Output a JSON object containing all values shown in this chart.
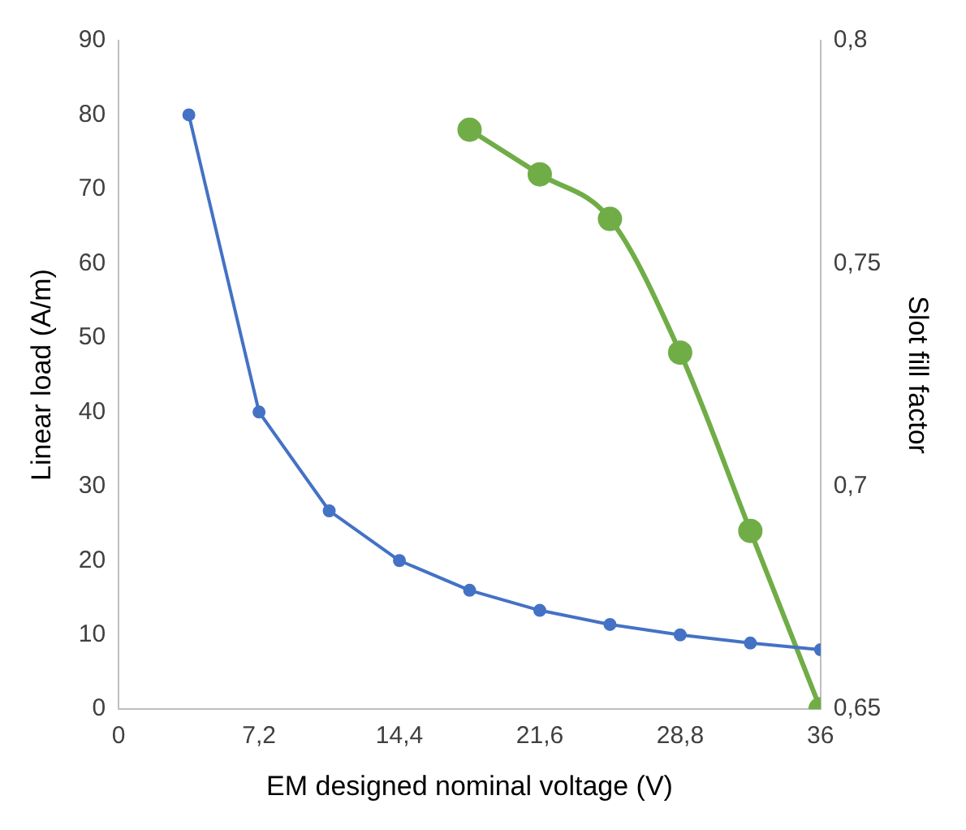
{
  "chart_data": {
    "type": "line",
    "xlabel": "EM designed nominal voltage (V)",
    "ylabel": "Linear load (A/m)",
    "y2label": "Slot fill factor",
    "xlim": [
      0,
      36
    ],
    "xticks": [
      0,
      {
        "value": 7.2,
        "label": "7,2"
      },
      {
        "value": 14.4,
        "label": "14,4"
      },
      {
        "value": 21.6,
        "label": "21,6"
      },
      {
        "value": 28.8,
        "label": "28,8"
      },
      36
    ],
    "ylim": [
      0,
      90
    ],
    "yticks": [
      0,
      10,
      20,
      30,
      40,
      50,
      60,
      70,
      80,
      90
    ],
    "y2lim": [
      0.65,
      0.8
    ],
    "y2ticks": [
      {
        "value": 0.65,
        "label": "0,65"
      },
      {
        "value": 0.7,
        "label": "0,7"
      },
      {
        "value": 0.75,
        "label": "0,75"
      },
      {
        "value": 0.8,
        "label": "0,8"
      }
    ],
    "grid": false,
    "legend": false,
    "marker": "circle",
    "series": [
      {
        "color": "#4472c4",
        "x": [
          3.6,
          7.2,
          10.8,
          14.4,
          18,
          21.6,
          25.2,
          28.8,
          32.4,
          36
        ],
        "values": [
          80,
          40,
          26.7,
          20,
          16,
          13.3,
          11.4,
          10,
          8.9,
          8
        ]
      },
      {
        "color": "#70ad47",
        "axis": "y2",
        "x": [
          18,
          21.6,
          25.2,
          28.8,
          32.4,
          36
        ],
        "values": [
          0.78,
          0.77,
          0.76,
          0.73,
          0.69,
          0.65
        ]
      }
    ]
  }
}
